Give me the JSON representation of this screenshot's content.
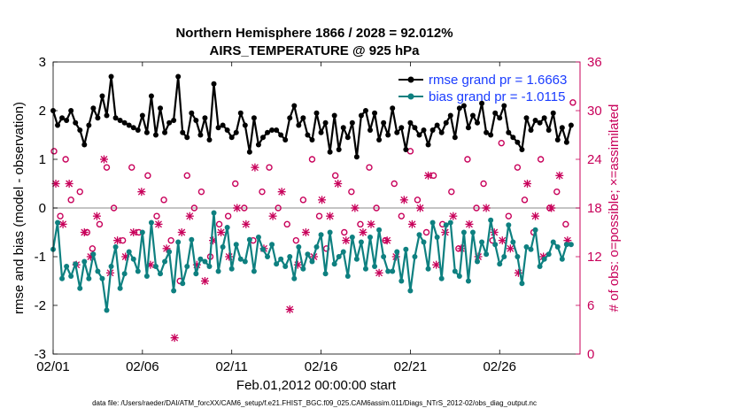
{
  "chart_data": {
    "type": "line",
    "title": "Northern Hemisphere 1866 / 2028 = 92.012%",
    "subtitle": "AIRS_TEMPERATURE @ 925 hPa",
    "xlabel": "Feb.01,2012 00:00:00 start",
    "ylabel": "rmse and bias (model - observation)",
    "y2label": "# of obs: o=possible; ×=assimilated",
    "footnote": "data file: /Users/raeder/DAI/ATM_forcXX/CAM6_setup/f.e21.FHIST_BGC.f09_025.CAM6assim.011/Diags_NTrS_2012-02/obs_diag_output.nc",
    "xlim": [
      0,
      29.5
    ],
    "ylim": [
      -3,
      3
    ],
    "y2lim": [
      0,
      36
    ],
    "x_ticks": [
      0,
      5,
      10,
      15,
      20,
      25
    ],
    "x_tick_labels": [
      "02/01",
      "02/06",
      "02/11",
      "02/16",
      "02/21",
      "02/26"
    ],
    "y_ticks": [
      -3,
      -2,
      -1,
      0,
      1,
      2,
      3
    ],
    "y2_ticks": [
      0,
      6,
      12,
      18,
      24,
      30,
      36
    ],
    "colors": {
      "rmse": "#000000",
      "bias": "#0e8080",
      "obs": "#c8005a",
      "legend_text": "#1a3cff"
    },
    "legend_location": "top-right",
    "series": [
      {
        "name": "rmse grand pr = 1.6663",
        "marker": "dot",
        "x": [
          0.0,
          0.25,
          0.5,
          0.75,
          1.0,
          1.25,
          1.5,
          1.75,
          2.0,
          2.25,
          2.5,
          2.75,
          3.0,
          3.25,
          3.5,
          3.75,
          4.0,
          4.25,
          4.5,
          4.75,
          5.0,
          5.25,
          5.5,
          5.75,
          6.0,
          6.25,
          6.5,
          6.75,
          7.0,
          7.25,
          7.5,
          7.75,
          8.0,
          8.25,
          8.5,
          8.75,
          9.0,
          9.25,
          9.5,
          9.75,
          10.0,
          10.25,
          10.5,
          10.75,
          11.0,
          11.25,
          11.5,
          11.75,
          12.0,
          12.25,
          12.5,
          12.75,
          13.0,
          13.25,
          13.5,
          13.75,
          14.0,
          14.25,
          14.5,
          14.75,
          15.0,
          15.25,
          15.5,
          15.75,
          16.0,
          16.25,
          16.5,
          16.75,
          17.0,
          17.25,
          17.5,
          17.75,
          18.0,
          18.25,
          18.5,
          18.75,
          19.0,
          19.25,
          19.5,
          19.75,
          20.0,
          20.25,
          20.5,
          20.75,
          21.0,
          21.25,
          21.5,
          21.75,
          22.0,
          22.25,
          22.5,
          22.75,
          23.0,
          23.25,
          23.5,
          23.75,
          24.0,
          24.25,
          24.5,
          24.75,
          25.0,
          25.25,
          25.5,
          25.75,
          26.0,
          26.25,
          26.5,
          26.75,
          27.0,
          27.25,
          27.5,
          27.75,
          28.0,
          28.25,
          28.5,
          28.75,
          29.0
        ],
        "values": [
          2.0,
          1.7,
          1.85,
          1.8,
          2.0,
          1.75,
          1.6,
          1.3,
          1.7,
          2.05,
          1.85,
          2.3,
          1.9,
          2.7,
          1.85,
          1.8,
          1.75,
          1.7,
          1.65,
          1.6,
          1.9,
          1.55,
          2.3,
          1.5,
          2.05,
          1.55,
          1.75,
          1.8,
          2.7,
          1.55,
          1.45,
          1.95,
          1.8,
          1.5,
          1.85,
          1.4,
          2.55,
          1.65,
          1.7,
          1.6,
          1.45,
          1.55,
          1.95,
          1.7,
          1.15,
          1.85,
          1.3,
          1.45,
          1.55,
          1.6,
          1.6,
          1.5,
          1.4,
          1.85,
          2.1,
          1.7,
          1.85,
          1.5,
          1.4,
          1.95,
          1.55,
          1.75,
          1.15,
          1.9,
          1.2,
          1.65,
          1.45,
          1.75,
          1.05,
          1.9,
          2.0,
          1.6,
          1.95,
          1.4,
          1.75,
          1.5,
          2.05,
          1.55,
          1.65,
          1.2,
          1.75,
          1.65,
          1.5,
          1.6,
          1.3,
          1.6,
          1.7,
          1.55,
          1.75,
          1.9,
          1.45,
          2.05,
          2.1,
          1.65,
          1.9,
          1.75,
          2.15,
          1.55,
          1.5,
          1.95,
          1.85,
          2.1,
          1.55,
          1.45,
          1.35,
          1.2,
          1.85,
          1.6,
          1.8,
          1.75,
          1.85,
          1.6,
          1.95,
          1.4,
          1.65,
          1.35,
          1.7
        ]
      },
      {
        "name": "bias grand pr = -1.0115",
        "marker": "dot",
        "x": [
          0.0,
          0.25,
          0.5,
          0.75,
          1.0,
          1.25,
          1.5,
          1.75,
          2.0,
          2.25,
          2.5,
          2.75,
          3.0,
          3.25,
          3.5,
          3.75,
          4.0,
          4.25,
          4.5,
          4.75,
          5.0,
          5.25,
          5.5,
          5.75,
          6.0,
          6.25,
          6.5,
          6.75,
          7.0,
          7.25,
          7.5,
          7.75,
          8.0,
          8.25,
          8.5,
          8.75,
          9.0,
          9.25,
          9.5,
          9.75,
          10.0,
          10.25,
          10.5,
          10.75,
          11.0,
          11.25,
          11.5,
          11.75,
          12.0,
          12.25,
          12.5,
          12.75,
          13.0,
          13.25,
          13.5,
          13.75,
          14.0,
          14.25,
          14.5,
          14.75,
          15.0,
          15.25,
          15.5,
          15.75,
          16.0,
          16.25,
          16.5,
          16.75,
          17.0,
          17.25,
          17.5,
          17.75,
          18.0,
          18.25,
          18.5,
          18.75,
          19.0,
          19.25,
          19.5,
          19.75,
          20.0,
          20.25,
          20.5,
          20.75,
          21.0,
          21.25,
          21.5,
          21.75,
          22.0,
          22.25,
          22.5,
          22.75,
          23.0,
          23.25,
          23.5,
          23.75,
          24.0,
          24.25,
          24.5,
          24.75,
          25.0,
          25.25,
          25.5,
          25.75,
          26.0,
          26.25,
          26.5,
          26.75,
          27.0,
          27.25,
          27.5,
          27.75,
          28.0,
          28.25,
          28.5,
          28.75,
          29.0
        ],
        "values": [
          -0.85,
          -0.3,
          -1.45,
          -1.2,
          -1.4,
          -1.15,
          -1.65,
          -1.1,
          -1.45,
          -0.95,
          -1.3,
          -1.45,
          -2.1,
          -1.2,
          -0.8,
          -1.65,
          -1.35,
          -0.9,
          -1.05,
          -1.3,
          -0.5,
          -1.4,
          -0.3,
          -1.2,
          -1.35,
          -1.1,
          -0.9,
          -1.7,
          -0.7,
          -1.55,
          -1.2,
          -0.65,
          -1.35,
          -1.05,
          -1.1,
          -1.2,
          -0.1,
          -1.3,
          -0.8,
          -0.4,
          -1.25,
          -0.75,
          -1.05,
          -1.1,
          -0.65,
          -1.3,
          -0.6,
          -0.85,
          -1.0,
          -0.75,
          -1.15,
          -1.05,
          -1.2,
          -1.0,
          -1.45,
          -0.8,
          -1.25,
          -0.95,
          -1.1,
          -0.8,
          -0.55,
          -1.35,
          -0.5,
          -1.15,
          -1.0,
          -0.9,
          -1.4,
          -0.6,
          -1.05,
          -0.7,
          -1.25,
          -0.6,
          -1.2,
          -0.45,
          -1.0,
          -1.3,
          -1.3,
          -0.9,
          -1.5,
          -0.85,
          -1.7,
          -1.0,
          -0.55,
          -0.7,
          -1.25,
          -0.3,
          -0.6,
          -1.45,
          -0.35,
          -0.3,
          -1.3,
          -1.4,
          -0.5,
          -1.5,
          -0.5,
          -1.1,
          -0.7,
          -0.95,
          -0.25,
          -0.75,
          -1.15,
          -1.0,
          -0.35,
          -0.7,
          -1.0,
          -1.55,
          -0.8,
          -0.85,
          -0.45,
          -1.2,
          -1.05,
          -0.95,
          -0.7,
          -0.8,
          -1.05,
          -0.75,
          -0.75
        ]
      },
      {
        "name": "possible",
        "marker": "o",
        "x": [
          0.05,
          0.4,
          0.7,
          1.0,
          1.5,
          1.9,
          2.2,
          2.6,
          3.0,
          3.4,
          3.9,
          4.4,
          4.8,
          5.3,
          5.8,
          6.2,
          6.6,
          7.1,
          7.5,
          7.9,
          8.3,
          8.8,
          9.3,
          9.8,
          10.2,
          10.7,
          11.2,
          11.7,
          12.1,
          12.6,
          13.1,
          13.6,
          14.0,
          14.5,
          14.9,
          15.3,
          15.8,
          16.3,
          16.7,
          17.2,
          17.7,
          18.1,
          18.6,
          19.1,
          19.5,
          20.0,
          20.4,
          20.9,
          21.3,
          21.8,
          22.3,
          22.7,
          23.2,
          23.7,
          24.1,
          24.6,
          25.1,
          25.5,
          26.0,
          26.4,
          26.9,
          27.3,
          27.8,
          28.2,
          28.7,
          29.1
        ],
        "values": [
          25,
          17,
          24,
          19,
          20,
          15,
          13,
          16,
          23,
          18,
          14,
          23,
          15,
          22,
          17,
          19,
          14,
          9,
          22,
          18,
          20,
          12,
          16,
          17,
          21,
          18,
          14,
          20,
          23,
          18,
          16,
          14,
          19,
          24,
          17,
          13,
          22,
          15,
          20,
          16,
          23,
          18,
          14,
          21,
          17,
          25,
          19,
          15,
          22,
          16,
          20,
          13,
          24,
          18,
          21,
          14,
          26,
          17,
          23,
          19,
          15,
          24,
          18,
          20,
          16,
          31
        ]
      },
      {
        "name": "assimilated",
        "marker": "x",
        "x": [
          0.15,
          0.55,
          0.9,
          1.3,
          1.75,
          2.1,
          2.45,
          2.85,
          3.2,
          3.6,
          4.05,
          4.5,
          4.95,
          5.45,
          5.9,
          6.35,
          6.8,
          7.2,
          7.65,
          8.05,
          8.5,
          8.95,
          9.4,
          9.85,
          10.3,
          10.8,
          11.3,
          11.8,
          12.3,
          12.8,
          13.25,
          13.7,
          14.15,
          14.6,
          15.05,
          15.5,
          15.95,
          16.4,
          16.9,
          17.35,
          17.8,
          18.25,
          18.7,
          19.2,
          19.65,
          20.1,
          20.55,
          21.0,
          21.45,
          21.95,
          22.4,
          22.85,
          23.3,
          23.8,
          24.25,
          24.7,
          25.15,
          25.6,
          26.05,
          26.55,
          27.0,
          27.45,
          27.9,
          28.35,
          28.8
        ],
        "values": [
          21,
          16,
          21,
          11,
          15,
          12,
          17,
          24,
          10,
          14,
          12,
          15,
          20,
          11,
          16,
          13,
          2,
          15,
          17,
          11,
          9,
          14,
          15,
          12,
          18,
          16,
          23,
          13,
          17,
          20,
          5.5,
          11,
          15,
          12,
          19,
          17,
          21,
          14,
          18,
          15,
          16,
          10,
          14,
          12,
          19,
          16,
          18,
          22,
          11,
          15,
          17,
          13,
          16,
          12,
          18,
          15,
          14,
          13,
          10,
          21,
          17,
          12,
          18,
          22,
          14
        ]
      }
    ]
  }
}
